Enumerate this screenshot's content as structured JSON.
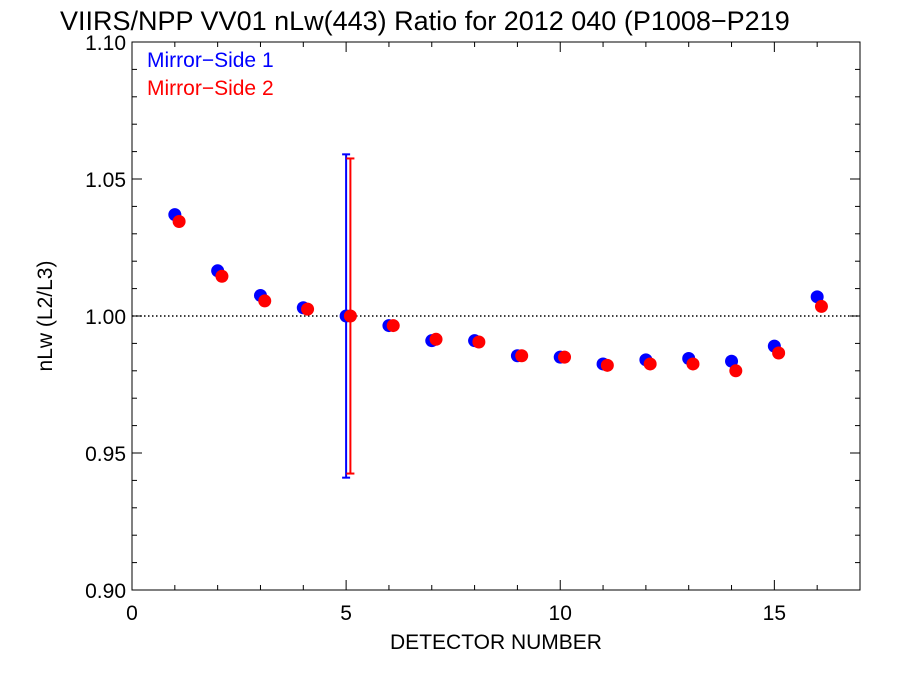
{
  "chart_data": {
    "type": "scatter",
    "title": "VIIRS/NPP VV01 nLw(443) Ratio for 2012 040 (P1008−P219",
    "xlabel": "DETECTOR NUMBER",
    "ylabel": "nLw (L2/L3)",
    "xlim": [
      0,
      17
    ],
    "ylim": [
      0.9,
      1.1
    ],
    "x_ticks": [
      0,
      5,
      10,
      15
    ],
    "x_tick_labels": [
      "0",
      "5",
      "10",
      "15"
    ],
    "y_ticks": [
      0.9,
      0.95,
      1.0,
      1.05,
      1.1
    ],
    "y_tick_labels": [
      "0.90",
      "0.95",
      "1.00",
      "1.05",
      "1.10"
    ],
    "reference_line": 1.0,
    "legend_position": "top-left",
    "series": [
      {
        "name": "Mirror−Side 1",
        "color": "#0000ff",
        "x": [
          1,
          2,
          3,
          4,
          5,
          6,
          7,
          8,
          9,
          10,
          11,
          12,
          13,
          14,
          15,
          16
        ],
        "values": [
          1.037,
          1.0165,
          1.0075,
          1.003,
          1.0,
          0.9965,
          0.991,
          0.991,
          0.9855,
          0.985,
          0.9825,
          0.984,
          0.9845,
          0.9835,
          0.989,
          1.007
        ],
        "error_bar": {
          "x": 5,
          "low": 0.941,
          "high": 1.059
        }
      },
      {
        "name": "Mirror−Side 2",
        "color": "#ff0000",
        "x": [
          1.1,
          2.1,
          3.1,
          4.1,
          5.1,
          6.1,
          7.1,
          8.1,
          9.1,
          10.1,
          11.1,
          12.1,
          13.1,
          14.1,
          15.1,
          16.1
        ],
        "values": [
          1.0345,
          1.0145,
          1.0055,
          1.0025,
          1.0,
          0.9965,
          0.9915,
          0.9905,
          0.9855,
          0.985,
          0.982,
          0.9825,
          0.9825,
          0.98,
          0.9865,
          1.0035
        ],
        "error_bar": {
          "x": 5.1,
          "low": 0.9425,
          "high": 1.0575
        }
      }
    ]
  }
}
